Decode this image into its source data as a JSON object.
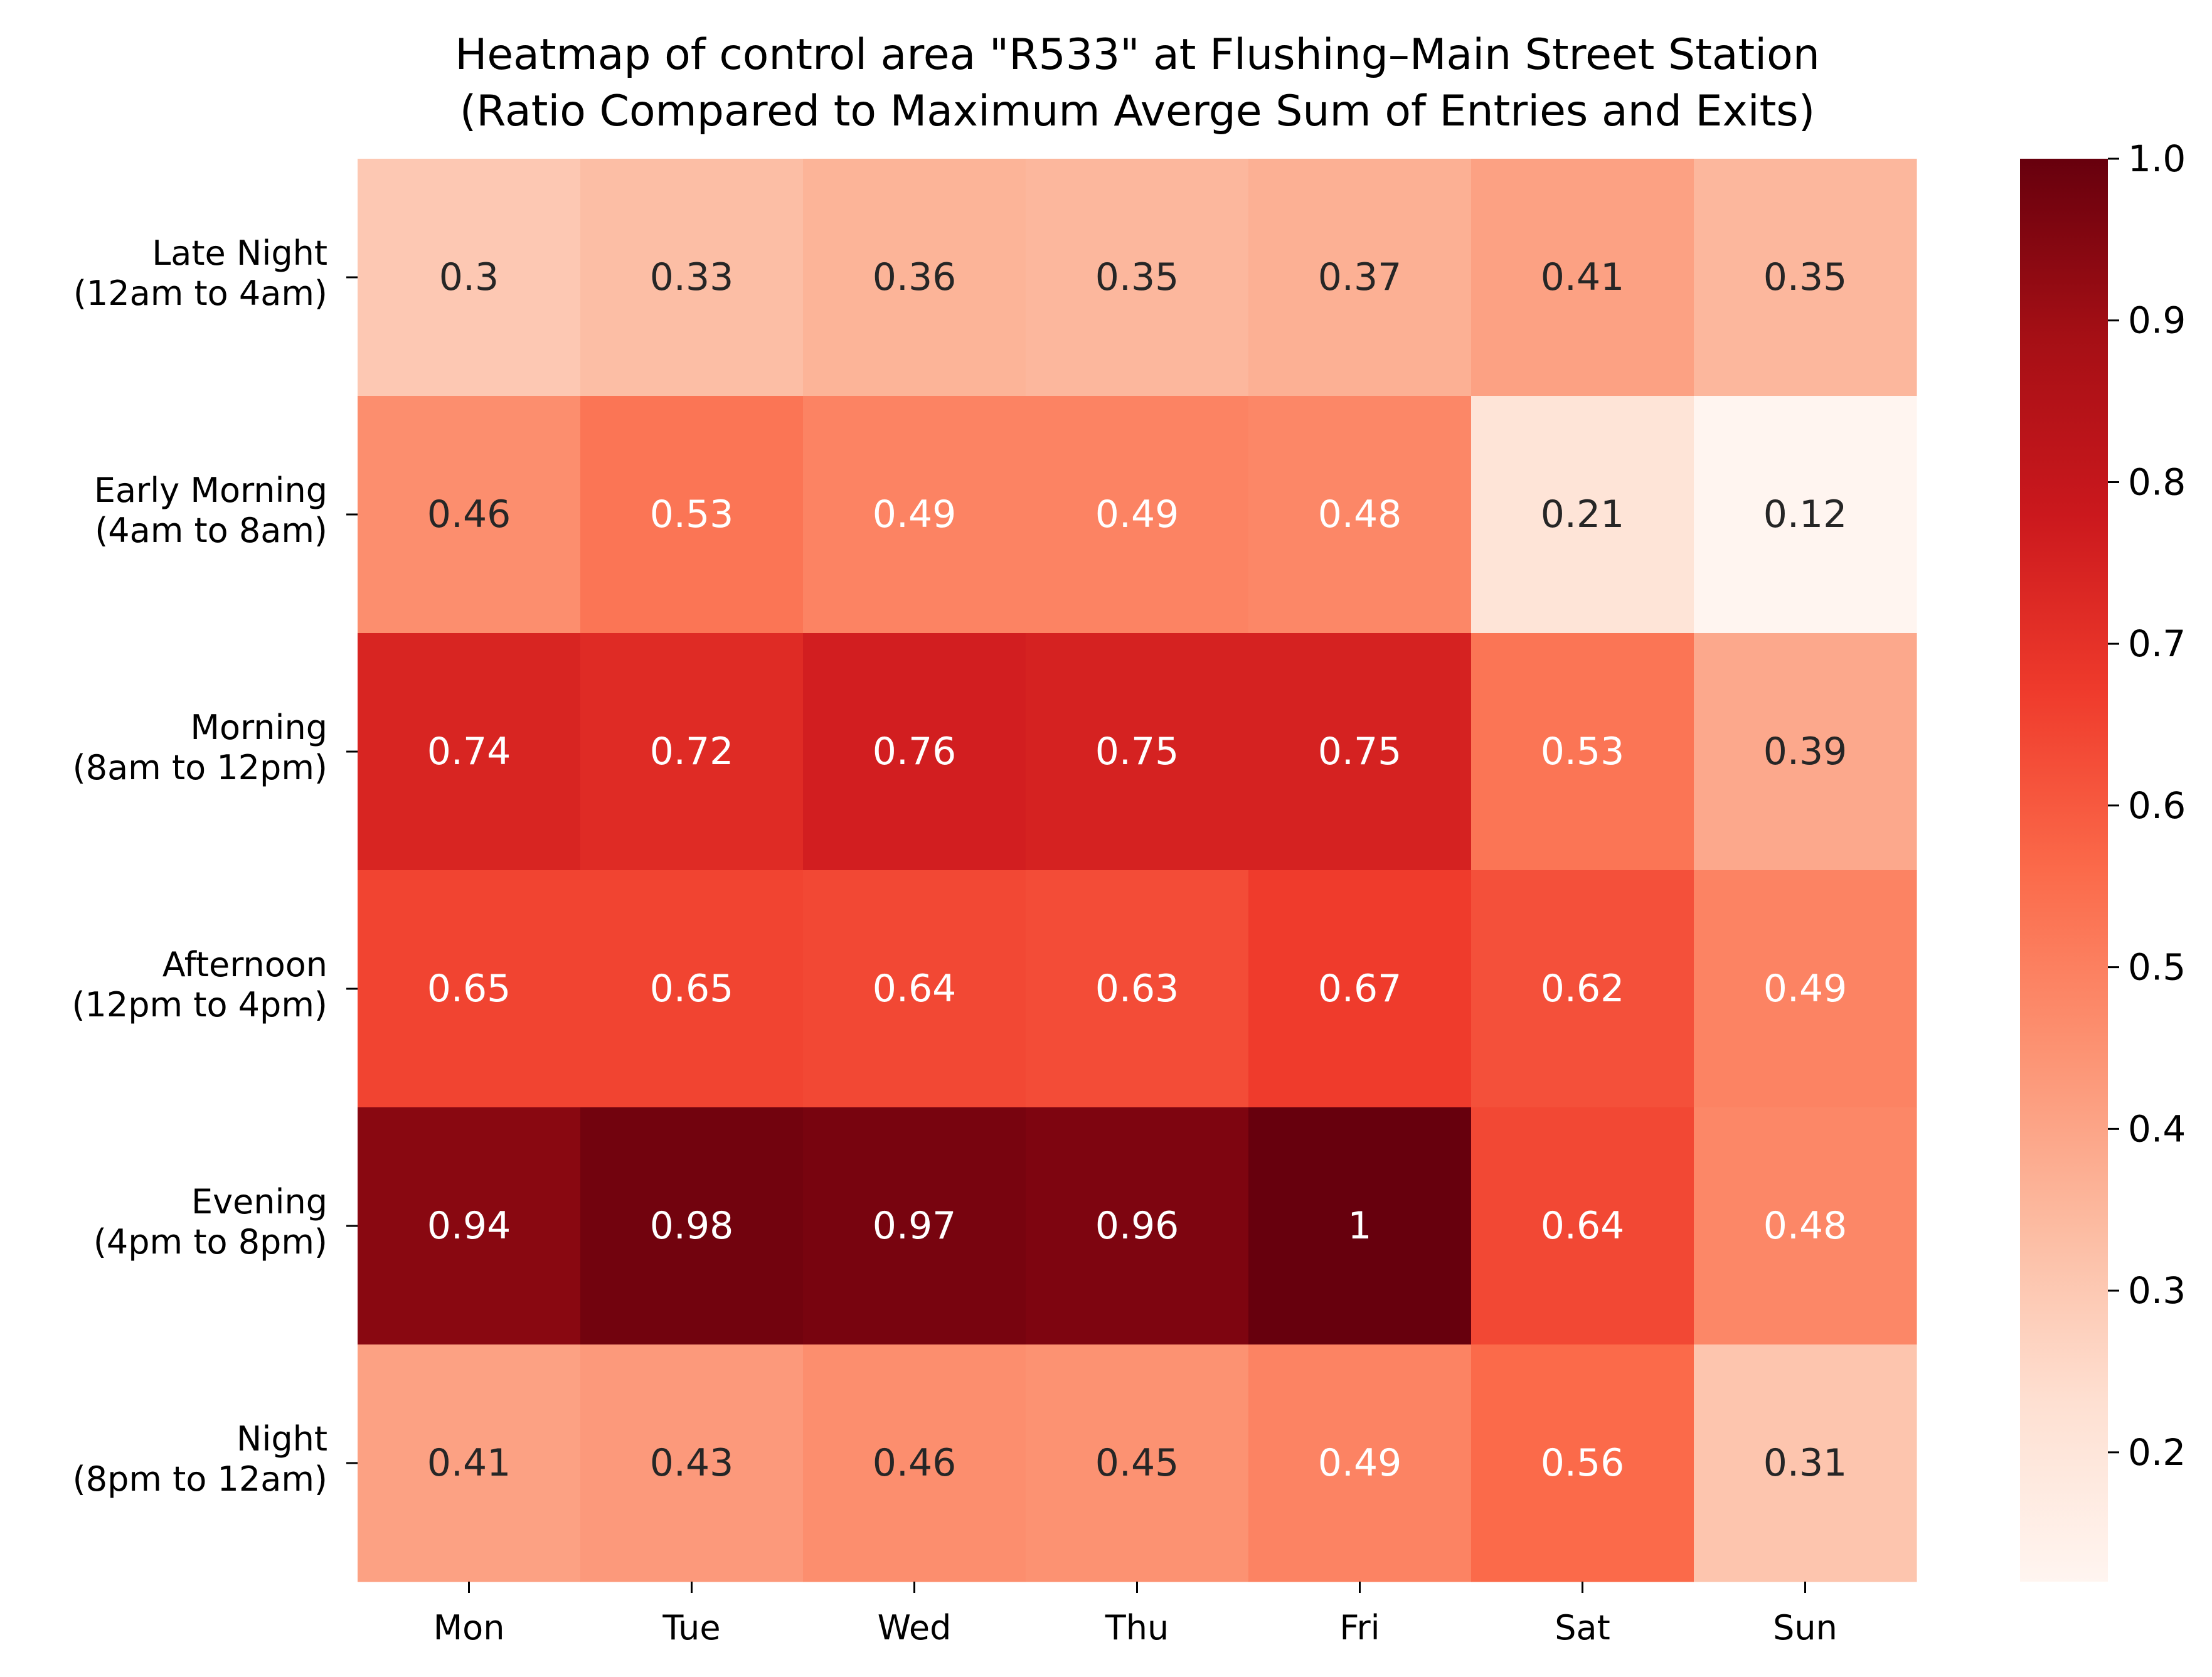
{
  "chart_data": {
    "type": "heatmap",
    "title_lines": [
      "Heatmap of control area \"R533\" at Flushing–Main Street Station",
      "(Ratio Compared to Maximum Averge Sum of Entries and Exits)"
    ],
    "xlabel": "",
    "ylabel": "",
    "x_categories": [
      "Mon",
      "Tue",
      "Wed",
      "Thu",
      "Fri",
      "Sat",
      "Sun"
    ],
    "y_categories": [
      [
        "Late Night",
        "(12am to 4am)"
      ],
      [
        "Early Morning",
        "(4am to 8am)"
      ],
      [
        "Morning",
        "(8am to 12pm)"
      ],
      [
        "Afternoon",
        "(12pm to 4pm)"
      ],
      [
        "Evening",
        "(4pm to 8pm)"
      ],
      [
        "Night",
        "(8pm to 12am)"
      ]
    ],
    "values": [
      [
        0.3,
        0.33,
        0.36,
        0.35,
        0.37,
        0.41,
        0.35
      ],
      [
        0.46,
        0.53,
        0.49,
        0.49,
        0.48,
        0.21,
        0.12
      ],
      [
        0.74,
        0.72,
        0.76,
        0.75,
        0.75,
        0.53,
        0.39
      ],
      [
        0.65,
        0.65,
        0.64,
        0.63,
        0.67,
        0.62,
        0.49
      ],
      [
        0.94,
        0.98,
        0.97,
        0.96,
        1.0,
        0.64,
        0.48
      ],
      [
        0.41,
        0.43,
        0.46,
        0.45,
        0.49,
        0.56,
        0.31
      ]
    ],
    "annotations": [
      [
        "0.3",
        "0.33",
        "0.36",
        "0.35",
        "0.37",
        "0.41",
        "0.35"
      ],
      [
        "0.46",
        "0.53",
        "0.49",
        "0.49",
        "0.48",
        "0.21",
        "0.12"
      ],
      [
        "0.74",
        "0.72",
        "0.76",
        "0.75",
        "0.75",
        "0.53",
        "0.39"
      ],
      [
        "0.65",
        "0.65",
        "0.64",
        "0.63",
        "0.67",
        "0.62",
        "0.49"
      ],
      [
        "0.94",
        "0.98",
        "0.97",
        "0.96",
        "1",
        "0.64",
        "0.48"
      ],
      [
        "0.41",
        "0.43",
        "0.46",
        "0.45",
        "0.49",
        "0.56",
        "0.31"
      ]
    ],
    "colormap": "Reds",
    "colormap_stops": [
      "#fff5f0",
      "#fee0d2",
      "#fcbba1",
      "#fc9272",
      "#fb6a4a",
      "#ef3b2c",
      "#cb181d",
      "#a50f15",
      "#67000d"
    ],
    "colorbar": {
      "min": 0.12,
      "max": 1.0,
      "ticks": [
        0.2,
        0.3,
        0.4,
        0.5,
        0.6,
        0.7,
        0.8,
        0.9,
        1.0
      ],
      "tick_labels": [
        "0.2",
        "0.3",
        "0.4",
        "0.5",
        "0.6",
        "0.7",
        "0.8",
        "0.9",
        "1.0"
      ]
    },
    "text_color_dark": "#262626",
    "text_color_light": "#ffffff",
    "grid": false,
    "legend": "colorbar-right"
  }
}
